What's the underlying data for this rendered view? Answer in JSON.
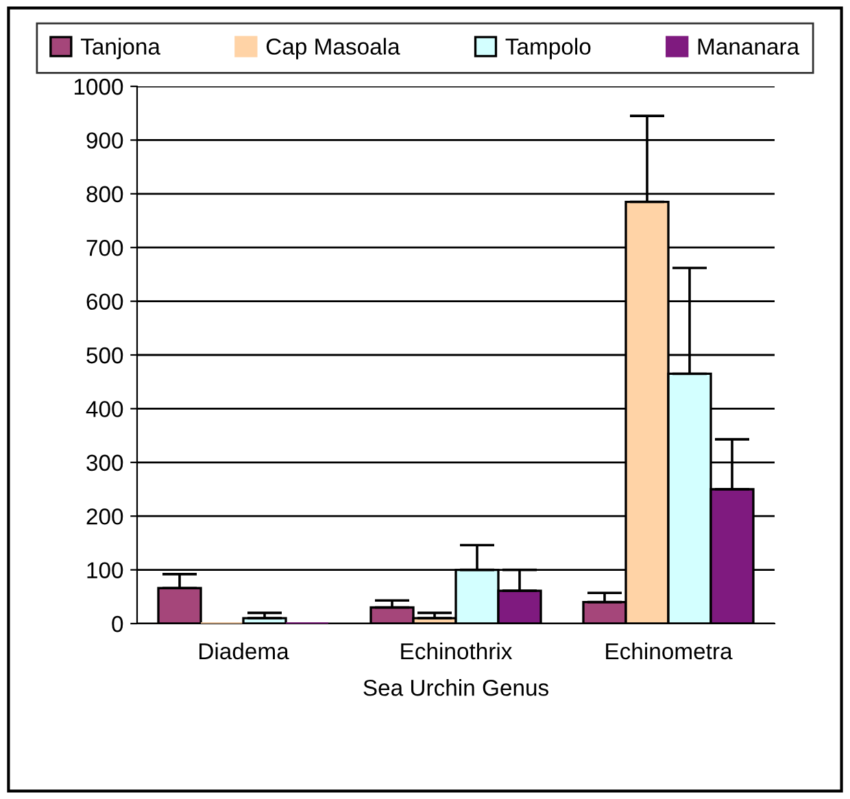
{
  "chart_data": {
    "type": "bar",
    "xlabel": "Sea Urchin Genus",
    "categories": [
      "Diadema",
      "Echinothrix",
      "Echinometra"
    ],
    "series": [
      {
        "name": "Tanjona",
        "color": "#a5467a",
        "values": [
          66,
          30,
          40
        ],
        "errors": [
          [
            66,
            92
          ],
          [
            30,
            43
          ],
          [
            40,
            57
          ]
        ]
      },
      {
        "name": "Cap Masoala",
        "color": "#ffd3a6",
        "values": [
          0,
          10,
          785
        ],
        "errors": [
          [
            0,
            0
          ],
          [
            10,
            20
          ],
          [
            785,
            945
          ]
        ]
      },
      {
        "name": "Tampolo",
        "color": "#d3ffff",
        "values": [
          10,
          100,
          465
        ],
        "errors": [
          [
            10,
            20
          ],
          [
            100,
            146
          ],
          [
            465,
            662
          ]
        ]
      },
      {
        "name": "Mananara",
        "color": "#7f1a7f",
        "values": [
          0,
          61,
          250
        ],
        "errors": [
          [
            0,
            0
          ],
          [
            61,
            100
          ],
          [
            250,
            343
          ]
        ]
      }
    ],
    "ylim": [
      0,
      1000
    ],
    "yticks": [
      0,
      100,
      200,
      300,
      400,
      500,
      600,
      700,
      800,
      900,
      1000
    ],
    "grid": "y",
    "legend": "top"
  }
}
